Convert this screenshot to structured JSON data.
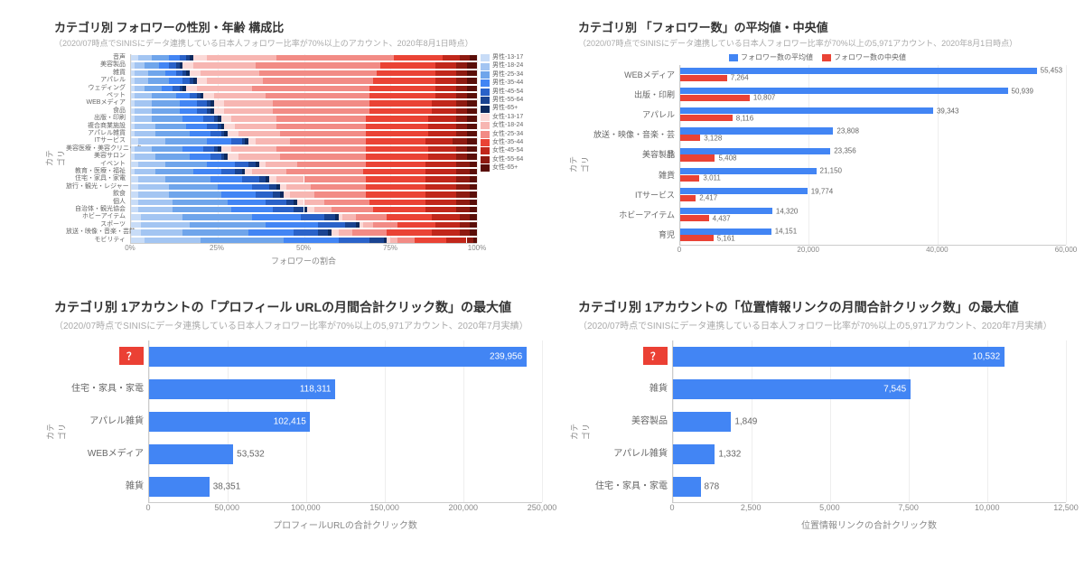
{
  "colors": {
    "blue": "#4285f4",
    "red": "#ea4335",
    "bg": "#ffffff",
    "grid": "#eeeeee",
    "text": "#666666",
    "title": "#333333",
    "subtitle": "#aaaaaa"
  },
  "chart1": {
    "type": "stacked-bar-horizontal",
    "title": "カテゴリ別 フォロワーの性別・年齢 構成比",
    "subtitle": "（2020/07時点でSINISにデータ連携している日本人フォロワー比率が70%以上のアカウント、2020年8月1日時点）",
    "yaxis_label": "カテゴリ",
    "xaxis_label": "フォロワーの割合",
    "xticks": [
      "0%",
      "25%",
      "50%",
      "75%",
      "100%"
    ],
    "legend": [
      {
        "label": "男性-13-17",
        "color": "#c8dcf7"
      },
      {
        "label": "男性-18-24",
        "color": "#a3c5f2"
      },
      {
        "label": "男性-25-34",
        "color": "#6fa5eb"
      },
      {
        "label": "男性-35-44",
        "color": "#4285f4"
      },
      {
        "label": "男性-45-54",
        "color": "#2a62c9"
      },
      {
        "label": "男性-55-64",
        "color": "#1a4390"
      },
      {
        "label": "男性-65+",
        "color": "#0d2a5e"
      },
      {
        "label": "女性-13-17",
        "color": "#fbd9d7"
      },
      {
        "label": "女性-18-24",
        "color": "#f7b6b2"
      },
      {
        "label": "女性-25-34",
        "color": "#f28b85"
      },
      {
        "label": "女性-35-44",
        "color": "#ea4335"
      },
      {
        "label": "女性-45-54",
        "color": "#c1271b"
      },
      {
        "label": "女性-55-64",
        "color": "#8e1a11"
      },
      {
        "label": "女性-65+",
        "color": "#5a0e08"
      }
    ],
    "categories": [
      "音声",
      "美容製品",
      "雑貨",
      "アパレル",
      "ウェディング",
      "ペット",
      "WEBメディア",
      "食品",
      "出版・印刷",
      "複合商業施設",
      "アパレル雑貨",
      "ITサービス",
      "美容医療・美容クリニック",
      "美容サロン",
      "イベント",
      "教育・医療・福祉",
      "住宅・家具・家電",
      "旅行・観光・レジャー",
      "飲食",
      "個人",
      "自治体・観光協会",
      "ホビーアイテム",
      "スポーツ",
      "放送・映像・音楽・芸能",
      "モビリティ"
    ],
    "data": [
      [
        2,
        4,
        5,
        3,
        2,
        1,
        1,
        4,
        20,
        34,
        14,
        5,
        3,
        2
      ],
      [
        1,
        3,
        4,
        3,
        2,
        1,
        1,
        3,
        18,
        36,
        16,
        6,
        3,
        3
      ],
      [
        1,
        4,
        5,
        3,
        2,
        1,
        1,
        3,
        17,
        34,
        17,
        6,
        3,
        3
      ],
      [
        1,
        4,
        6,
        4,
        2,
        1,
        1,
        3,
        16,
        32,
        18,
        6,
        3,
        3
      ],
      [
        1,
        3,
        5,
        3,
        2,
        1,
        1,
        3,
        16,
        34,
        19,
        6,
        3,
        3
      ],
      [
        1,
        5,
        7,
        4,
        2,
        1,
        1,
        3,
        15,
        30,
        19,
        6,
        3,
        3
      ],
      [
        1,
        5,
        8,
        5,
        3,
        1,
        1,
        3,
        14,
        28,
        18,
        7,
        3,
        3
      ],
      [
        1,
        5,
        8,
        5,
        3,
        1,
        1,
        3,
        14,
        28,
        18,
        7,
        3,
        3
      ],
      [
        1,
        5,
        9,
        6,
        3,
        1,
        1,
        3,
        13,
        26,
        18,
        8,
        3,
        3
      ],
      [
        1,
        6,
        9,
        6,
        3,
        1,
        1,
        3,
        12,
        26,
        18,
        8,
        3,
        3
      ],
      [
        1,
        6,
        10,
        6,
        3,
        1,
        1,
        3,
        12,
        25,
        18,
        8,
        3,
        3
      ],
      [
        2,
        8,
        12,
        7,
        3,
        1,
        1,
        2,
        10,
        22,
        17,
        8,
        4,
        3
      ],
      [
        1,
        5,
        9,
        6,
        3,
        1,
        1,
        3,
        13,
        26,
        18,
        8,
        3,
        3
      ],
      [
        1,
        6,
        10,
        6,
        3,
        1,
        1,
        3,
        12,
        25,
        18,
        8,
        3,
        3
      ],
      [
        2,
        8,
        12,
        8,
        4,
        2,
        1,
        2,
        9,
        20,
        17,
        9,
        4,
        2
      ],
      [
        1,
        6,
        11,
        8,
        4,
        2,
        1,
        2,
        10,
        22,
        18,
        9,
        4,
        2
      ],
      [
        2,
        8,
        13,
        9,
        5,
        2,
        1,
        2,
        8,
        18,
        17,
        9,
        4,
        2
      ],
      [
        2,
        9,
        14,
        10,
        5,
        2,
        1,
        2,
        7,
        16,
        17,
        9,
        4,
        2
      ],
      [
        2,
        9,
        15,
        10,
        5,
        2,
        1,
        2,
        7,
        15,
        17,
        9,
        4,
        2
      ],
      [
        2,
        10,
        16,
        11,
        6,
        2,
        1,
        2,
        6,
        13,
        16,
        9,
        4,
        2
      ],
      [
        2,
        10,
        17,
        12,
        6,
        3,
        1,
        2,
        5,
        12,
        15,
        9,
        4,
        2
      ],
      [
        3,
        12,
        20,
        14,
        7,
        3,
        1,
        1,
        4,
        9,
        13,
        8,
        3,
        2
      ],
      [
        3,
        14,
        22,
        15,
        8,
        3,
        1,
        1,
        3,
        7,
        11,
        7,
        3,
        2
      ],
      [
        3,
        12,
        19,
        13,
        7,
        3,
        1,
        2,
        4,
        10,
        13,
        8,
        3,
        2
      ],
      [
        4,
        16,
        24,
        16,
        9,
        4,
        1,
        1,
        2,
        5,
        9,
        6,
        2,
        1
      ]
    ]
  },
  "chart2": {
    "type": "grouped-bar-horizontal",
    "title": "カテゴリ別 「フォロワー数」の平均値・中央値",
    "subtitle": "（2020/07時点でSINISにデータ連携している日本人フォロワー比率が70%以上の5,971アカウント、2020年8月1日時点）",
    "yaxis_label": "カテゴリ",
    "legend": [
      {
        "label": "フォロワー数の平均値",
        "color": "#4285f4"
      },
      {
        "label": "フォロワー数の中央値",
        "color": "#ea4335"
      }
    ],
    "xmax": 60000,
    "xticks": [
      0,
      20000,
      40000,
      60000
    ],
    "rows": [
      {
        "cat": "WEBメディア",
        "mean": 55453,
        "median": 7264
      },
      {
        "cat": "出版・印刷",
        "mean": 50939,
        "median": 10807
      },
      {
        "cat": "アパレル",
        "mean": 39343,
        "median": 8116
      },
      {
        "cat": "放送・映像・音楽・芸能",
        "mean": 23808,
        "median": 3128
      },
      {
        "cat": "美容製品",
        "mean": 23356,
        "median": 5408
      },
      {
        "cat": "雑貨",
        "mean": 21150,
        "median": 3011
      },
      {
        "cat": "ITサービス",
        "mean": 19774,
        "median": 2417
      },
      {
        "cat": "ホビーアイテム",
        "mean": 14320,
        "median": 4437
      },
      {
        "cat": "育児",
        "mean": 14151,
        "median": 5161
      }
    ]
  },
  "chart3": {
    "type": "bar-horizontal",
    "title": "カテゴリ別 1アカウントの「プロフィール URLの月間合計クリック数」の最大値",
    "subtitle": "（2020/07時点でSINISにデータ連携している日本人フォロワー比率が70%以上の5,971アカウント、2020年7月実績）",
    "yaxis_label": "カテゴリ",
    "xaxis_label": "プロフィールURLの合計クリック数",
    "xmax": 250000,
    "xticks": [
      0,
      50000,
      100000,
      150000,
      200000,
      250000
    ],
    "bar_color": "#4285f4",
    "rows": [
      {
        "cat": "?",
        "val": 239956,
        "question": true
      },
      {
        "cat": "住宅・家具・家電",
        "val": 118311
      },
      {
        "cat": "アパレル雑貨",
        "val": 102415
      },
      {
        "cat": "WEBメディア",
        "val": 53532
      },
      {
        "cat": "雑貨",
        "val": 38351
      }
    ]
  },
  "chart4": {
    "type": "bar-horizontal",
    "title": "カテゴリ別 1アカウントの「位置情報リンクの月間合計クリック数」の最大値",
    "subtitle": "（2020/07時点でSINISにデータ連携している日本人フォロワー比率が70%以上の5,971アカウント、2020年7月実績）",
    "yaxis_label": "カテゴリ",
    "xaxis_label": "位置情報リンクの合計クリック数",
    "xmax": 12500,
    "xticks": [
      0,
      2500,
      5000,
      7500,
      10000,
      12500
    ],
    "bar_color": "#4285f4",
    "rows": [
      {
        "cat": "?",
        "val": 10532,
        "question": true
      },
      {
        "cat": "雑貨",
        "val": 7545
      },
      {
        "cat": "美容製品",
        "val": 1849
      },
      {
        "cat": "アパレル雑貨",
        "val": 1332
      },
      {
        "cat": "住宅・家具・家電",
        "val": 878
      }
    ]
  }
}
